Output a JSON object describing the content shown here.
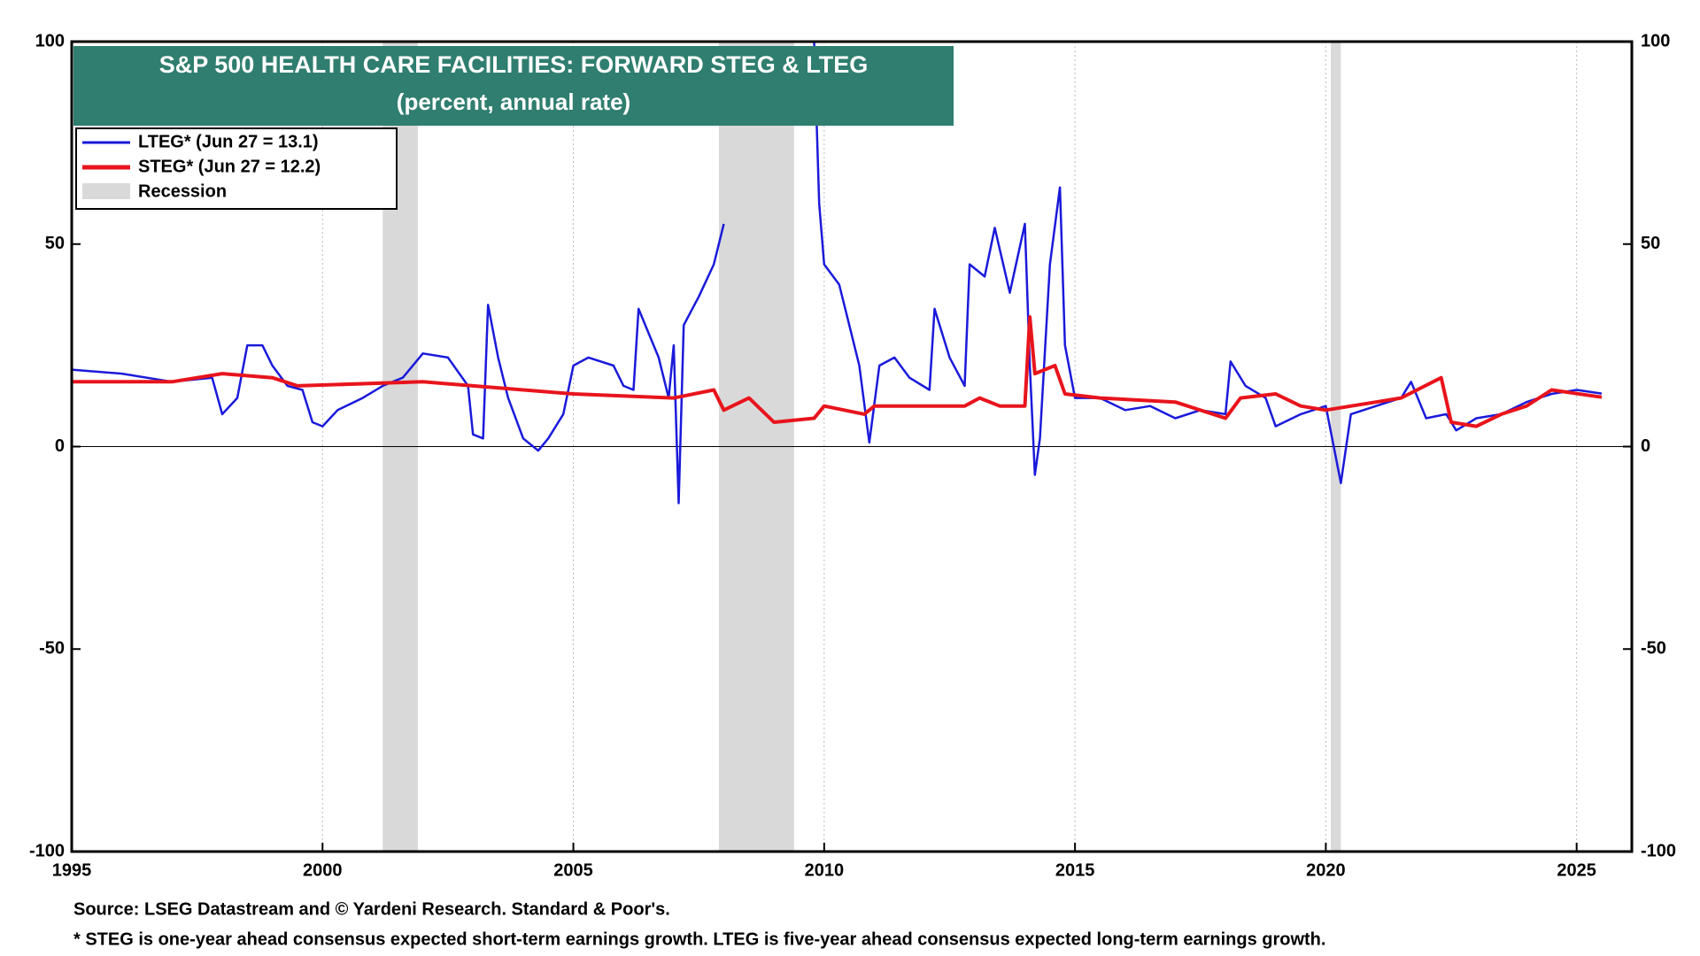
{
  "chart_data": {
    "type": "line",
    "title": "S&P 500 HEALTH CARE FACILITIES: FORWARD STEG & LTEG",
    "subtitle": "(percent, annual rate)",
    "xlim": [
      1995,
      2026.1
    ],
    "xticks": [
      1995,
      2000,
      2005,
      2010,
      2015,
      2020,
      2025
    ],
    "ylim": [
      -100,
      100
    ],
    "yticks": [
      -100,
      -50,
      0,
      50,
      100
    ],
    "y2lim": [
      -100,
      100
    ],
    "y2ticks": [
      -100,
      -50,
      0,
      50,
      100
    ],
    "grid": true,
    "legend": "top-left",
    "recession": {
      "name": "Recession",
      "color": "#d9d9d9",
      "spans": [
        {
          "start": 2001.2,
          "end": 2001.9
        },
        {
          "start": 2007.9,
          "end": 2009.4
        },
        {
          "start": 2020.1,
          "end": 2020.3
        }
      ]
    },
    "series": [
      {
        "name": "LTEG* (Jun 27 = 13.1)",
        "color": "#1a1adb",
        "x": [
          1995,
          1996,
          1997,
          1997.8,
          1998,
          1998.3,
          1998.5,
          1998.8,
          1999,
          1999.3,
          1999.6,
          1999.8,
          2000,
          2000.3,
          2000.8,
          2001.2,
          2001.6,
          2002,
          2002.5,
          2002.9,
          2003,
          2003.2,
          2003.3,
          2003.5,
          2003.7,
          2004,
          2004.3,
          2004.5,
          2004.8,
          2005,
          2005.3,
          2005.8,
          2006,
          2006.2,
          2006.3,
          2006.7,
          2006.9,
          2007,
          2007.1,
          2007.2,
          2007.5,
          2007.8,
          2008,
          2009,
          2009.8,
          2009.9,
          2010,
          2010.3,
          2010.5,
          2010.7,
          2010.9,
          2011.1,
          2011.4,
          2011.7,
          2012.1,
          2012.2,
          2012.5,
          2012.8,
          2012.9,
          2013.2,
          2013.4,
          2013.7,
          2014,
          2014.1,
          2014.2,
          2014.3,
          2014.5,
          2014.7,
          2014.8,
          2015,
          2015.5,
          2016,
          2016.5,
          2017,
          2017.5,
          2018,
          2018.1,
          2018.4,
          2018.8,
          2019,
          2019.5,
          2020,
          2020.3,
          2020.5,
          2021,
          2021.5,
          2021.7,
          2022,
          2022.4,
          2022.6,
          2023,
          2023.5,
          2024,
          2024.5,
          2025,
          2025.5
        ],
        "values": [
          19,
          18,
          16,
          17,
          8,
          12,
          25,
          25,
          20,
          15,
          14,
          6,
          5,
          9,
          12,
          15,
          17,
          23,
          22,
          15,
          3,
          2,
          35,
          22,
          12,
          2,
          -1,
          2,
          8,
          20,
          22,
          20,
          15,
          14,
          34,
          22,
          12,
          25,
          -14,
          30,
          37,
          45,
          55,
          null,
          100,
          60,
          45,
          40,
          30,
          20,
          1,
          20,
          22,
          17,
          14,
          34,
          22,
          15,
          45,
          42,
          54,
          38,
          55,
          20,
          -7,
          2,
          45,
          64,
          25,
          12,
          12,
          9,
          10,
          7,
          9,
          8,
          21,
          15,
          12,
          5,
          8,
          10,
          -9,
          8,
          10,
          12,
          16,
          7,
          8,
          4,
          7,
          8,
          11,
          13,
          14,
          13.1
        ]
      },
      {
        "name": "STEG* (Jun 27 = 12.2)",
        "color": "#e8141c",
        "x": [
          1995,
          1997,
          1998,
          1999,
          1999.5,
          2002,
          2003,
          2005,
          2007,
          2007.8,
          2008,
          2008.5,
          2009,
          2009.8,
          2010,
          2010.8,
          2011,
          2012.8,
          2013.1,
          2013.5,
          2014,
          2014.1,
          2014.2,
          2014.6,
          2014.8,
          2015.5,
          2017,
          2018,
          2018.3,
          2019,
          2019.5,
          2020,
          2021,
          2021.5,
          2022.3,
          2022.5,
          2023,
          2023.5,
          2024,
          2024.5,
          2025.5
        ],
        "values": [
          16,
          16,
          18,
          17,
          15,
          16,
          15,
          13,
          12,
          14,
          9,
          12,
          6,
          7,
          10,
          8,
          10,
          10,
          12,
          10,
          10,
          32,
          18,
          20,
          13,
          12,
          11,
          7,
          12,
          13,
          10,
          9,
          11,
          12,
          17,
          6,
          5,
          8,
          10,
          14,
          12.2
        ]
      }
    ],
    "notes": [
      "Source: LSEG Datastream and © Yardeni Research. Standard & Poor's.",
      "* STEG is one-year ahead consensus expected short-term earnings growth. LTEG is five-year ahead consensus expected long-term earnings growth."
    ]
  }
}
